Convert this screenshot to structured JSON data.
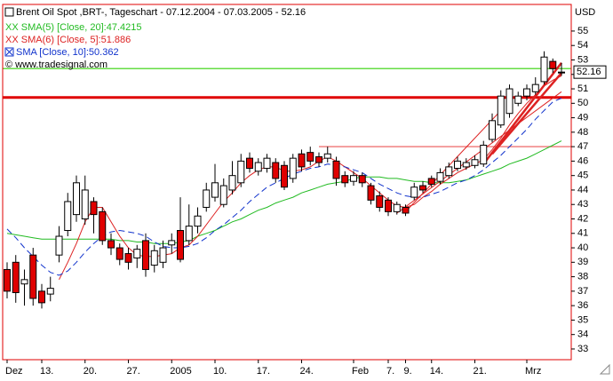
{
  "chart_data": {
    "type": "candlestick",
    "title": "Brent Oil Spot ,BRT-, Tageschart - 07.12.2004 - 07.03.2005 - 52.16",
    "y_unit": "USD",
    "credit": "© www.tradesignal.com",
    "categories": [
      "Dez",
      null,
      null,
      null,
      "13.",
      null,
      null,
      null,
      null,
      "20.",
      null,
      null,
      null,
      null,
      "27.",
      null,
      null,
      null,
      null,
      "2005",
      null,
      null,
      null,
      null,
      "10.",
      null,
      null,
      null,
      null,
      "17.",
      null,
      null,
      null,
      null,
      "24.",
      null,
      null,
      null,
      null,
      null,
      "Feb",
      null,
      null,
      null,
      "7.",
      null,
      "9.",
      null,
      null,
      "14.",
      null,
      null,
      null,
      null,
      "21.",
      null,
      null,
      null,
      null,
      null,
      "Mrz",
      null,
      null,
      null,
      null
    ],
    "open": [
      38.5,
      39.0,
      37.5,
      39.5,
      37.0,
      36.8,
      39.5,
      41.2,
      42.3,
      42.0,
      43.2,
      42.5,
      40.5,
      40.0,
      39.6,
      39.3,
      40.5,
      38.8,
      39.0,
      40.2,
      41.2,
      40.5,
      41.5,
      42.8,
      43.5,
      43.0,
      44.0,
      44.5,
      46.2,
      45.3,
      45.5,
      45.9,
      45.7,
      44.8,
      46.5,
      46.6,
      46.3,
      46.2,
      46.0,
      45.0,
      44.6,
      45.0,
      44.3,
      43.6,
      43.3,
      42.5,
      42.8,
      43.5,
      44.3,
      44.8,
      44.6,
      45.0,
      45.5,
      45.6,
      45.7,
      45.8,
      47.5,
      48.5,
      49.3,
      50.0,
      50.5,
      50.8,
      51.5,
      52.9,
      52.1
    ],
    "high": [
      39.0,
      39.5,
      38.5,
      40.0,
      37.5,
      38.0,
      41.5,
      43.8,
      45.0,
      45.0,
      43.5,
      42.8,
      41.0,
      40.3,
      40.0,
      40.2,
      41.0,
      40.2,
      40.5,
      41.0,
      43.5,
      43.0,
      42.8,
      44.5,
      45.8,
      44.8,
      46.0,
      46.5,
      46.6,
      46.2,
      46.5,
      46.2,
      46.0,
      46.5,
      46.8,
      47.0,
      46.6,
      47.0,
      46.3,
      45.3,
      45.3,
      45.2,
      44.5,
      43.9,
      43.5,
      43.2,
      43.0,
      44.5,
      44.6,
      45.0,
      45.5,
      45.9,
      46.3,
      46.2,
      46.4,
      47.4,
      49.3,
      50.9,
      51.3,
      50.8,
      51.3,
      51.8,
      53.6,
      53.1,
      52.8
    ],
    "low": [
      36.5,
      36.2,
      36.0,
      36.0,
      35.8,
      36.3,
      39.0,
      40.8,
      41.8,
      41.6,
      41.0,
      40.2,
      39.5,
      38.8,
      38.5,
      38.6,
      38.0,
      38.3,
      38.6,
      39.6,
      39.0,
      40.2,
      41.0,
      42.5,
      43.2,
      42.8,
      43.7,
      44.2,
      45.2,
      45.0,
      45.2,
      44.5,
      44.0,
      44.5,
      45.3,
      45.7,
      45.6,
      45.9,
      44.3,
      44.2,
      44.3,
      44.2,
      43.0,
      42.5,
      42.2,
      42.3,
      42.2,
      43.3,
      43.8,
      44.2,
      44.4,
      44.8,
      45.3,
      45.4,
      45.5,
      45.6,
      47.3,
      48.3,
      49.0,
      49.8,
      50.2,
      50.6,
      51.3,
      52.1,
      51.9
    ],
    "close": [
      37.0,
      36.9,
      37.8,
      36.5,
      36.2,
      37.2,
      40.8,
      43.2,
      44.5,
      44.0,
      42.3,
      40.5,
      40.0,
      39.2,
      39.0,
      39.9,
      38.5,
      39.8,
      40.0,
      40.5,
      39.2,
      41.5,
      42.2,
      44.0,
      44.5,
      44.3,
      45.0,
      46.0,
      45.5,
      45.9,
      46.2,
      44.8,
      44.2,
      46.2,
      45.6,
      46.0,
      45.9,
      46.5,
      44.8,
      44.5,
      45.0,
      44.5,
      43.3,
      42.8,
      42.5,
      43.0,
      42.4,
      44.2,
      44.0,
      44.4,
      45.2,
      45.6,
      46.0,
      45.9,
      46.1,
      47.1,
      48.8,
      50.5,
      51.0,
      50.5,
      51.0,
      51.3,
      53.2,
      52.4,
      52.16
    ],
    "up_color": "#ffffff",
    "down_color": "#e00000",
    "series": [
      {
        "name": "XX SMA(5) [Close, 20]:47.4215",
        "color": "#22bb22",
        "dashed": false,
        "values": [
          41.0,
          40.9,
          40.8,
          40.7,
          40.6,
          40.6,
          40.6,
          40.6,
          40.6,
          40.6,
          40.6,
          40.6,
          40.6,
          40.5,
          40.5,
          40.4,
          40.4,
          40.3,
          40.3,
          40.3,
          40.4,
          40.5,
          40.8,
          41.0,
          41.2,
          41.5,
          41.8,
          42.0,
          42.3,
          42.6,
          42.8,
          43.1,
          43.3,
          43.5,
          43.8,
          44.0,
          44.2,
          44.4,
          44.5,
          44.6,
          44.8,
          44.9,
          44.9,
          44.9,
          44.8,
          44.8,
          44.7,
          44.6,
          44.6,
          44.5,
          44.5,
          44.5,
          44.6,
          44.7,
          44.9,
          45.1,
          45.3,
          45.5,
          45.8,
          46.0,
          46.2,
          46.5,
          46.8,
          47.1,
          47.4
        ]
      },
      {
        "name": "XX SMA(6) [Close, 5]:51.886",
        "color": "#dd2222",
        "dashed": false,
        "values": [
          null,
          null,
          null,
          null,
          null,
          null,
          37.8,
          39.0,
          40.3,
          41.8,
          42.8,
          42.8,
          41.8,
          40.8,
          40.0,
          39.5,
          39.4,
          39.4,
          39.5,
          39.6,
          40.0,
          40.2,
          40.8,
          41.6,
          42.4,
          43.2,
          43.8,
          44.5,
          45.0,
          45.4,
          45.6,
          45.6,
          45.3,
          45.3,
          45.4,
          45.6,
          46.0,
          46.3,
          46.0,
          45.6,
          45.2,
          44.8,
          44.3,
          43.8,
          43.3,
          42.9,
          42.8,
          43.0,
          43.5,
          43.9,
          44.4,
          44.8,
          45.2,
          45.5,
          45.8,
          46.1,
          46.8,
          47.6,
          48.5,
          49.3,
          50.0,
          50.6,
          51.2,
          51.6,
          51.9
        ]
      },
      {
        "name": "SMA [Close, 10]:50.362",
        "color": "#1133cc",
        "dashed": true,
        "values": [
          41.3,
          40.7,
          40.0,
          39.4,
          38.8,
          38.3,
          38.1,
          38.4,
          39.0,
          39.7,
          40.3,
          40.8,
          41.1,
          41.2,
          41.1,
          41.0,
          40.8,
          40.4,
          40.1,
          40.0,
          40.0,
          40.1,
          40.3,
          40.7,
          41.2,
          41.6,
          42.1,
          42.6,
          43.2,
          43.7,
          44.2,
          44.5,
          44.8,
          45.1,
          45.3,
          45.5,
          45.6,
          45.8,
          45.7,
          45.6,
          45.4,
          45.2,
          44.8,
          44.4,
          44.1,
          43.8,
          43.6,
          43.5,
          43.5,
          43.7,
          43.9,
          44.2,
          44.5,
          44.7,
          45.0,
          45.4,
          45.9,
          46.4,
          47.0,
          47.6,
          48.2,
          48.9,
          49.5,
          50.1,
          50.36
        ]
      }
    ],
    "hlines": [
      {
        "value": 52.4,
        "color": "#66dd44",
        "from": 0,
        "bold": false
      },
      {
        "value": 50.4,
        "color": "#e00000",
        "from": 0,
        "bold": true
      },
      {
        "value": 47,
        "color": "#f08080",
        "from": 36,
        "bold": false
      }
    ],
    "trendlines": [
      {
        "from": [
          46,
          42.5
        ],
        "to": [
          57,
          49.5
        ],
        "color": "#dd2222",
        "bold": false
      },
      {
        "from": [
          45,
          42.4
        ],
        "to": [
          64,
          50.8
        ],
        "color": "#dd2222",
        "bold": false
      },
      {
        "from": [
          55,
          45.8
        ],
        "to": [
          64,
          52.8
        ],
        "color": "#dd2222",
        "bold": true
      },
      {
        "from": [
          56,
          46.5
        ],
        "to": [
          64,
          52.1
        ],
        "color": "#dd2222",
        "bold": true
      }
    ],
    "ylim": [
      32.26,
      56.84
    ],
    "yticks": [
      33,
      34,
      35,
      36,
      37,
      38,
      39,
      40,
      41,
      42,
      43,
      44,
      45,
      46,
      47,
      48,
      49,
      50,
      51,
      52,
      53,
      54,
      55
    ]
  }
}
